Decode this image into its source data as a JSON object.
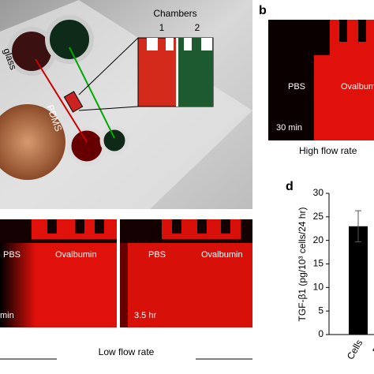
{
  "panels": {
    "a": {
      "chambers": "Chambers",
      "chamber_1": "1",
      "chamber_2": "2",
      "glass": "glass",
      "pdms": "PDMS"
    },
    "b": {
      "letter": "b",
      "left": "PBS",
      "right": "Ovalbumin",
      "time": "30 min",
      "caption": "High flow rate"
    },
    "c": {
      "left_1": "PBS",
      "right_1": "Ovalbumin",
      "time_1": "min",
      "left_2": "PBS",
      "right_2": "Ovalbumin",
      "time_2": "3.5 hr",
      "caption": "Low flow rate"
    }
  },
  "chart_data": {
    "type": "bar",
    "letter": "d",
    "ylabel": "TGF-β1 (pg/10³ cells/24 hr)",
    "categories": [
      "Cells",
      "Em"
    ],
    "values": [
      23,
      null
    ],
    "errors": [
      3.3,
      null
    ],
    "color": "#000000",
    "ylim": [
      0,
      30
    ],
    "yticks": [
      0,
      5,
      10,
      15,
      20,
      25,
      30
    ]
  }
}
